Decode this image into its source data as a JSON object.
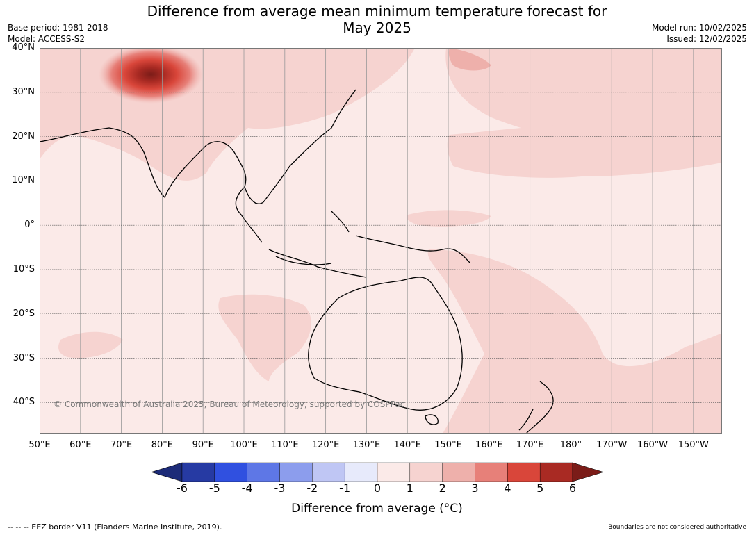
{
  "title_line1": "Difference from average mean minimum temperature forecast for",
  "title_line2": "May 2025",
  "meta_left": [
    "Base period: 1981-2018",
    "Model: ACCESS-S2"
  ],
  "meta_right": [
    "Model run: 10/02/2025",
    "Issued: 12/02/2025"
  ],
  "map": {
    "lon_range": [
      50,
      217
    ],
    "lat_range": [
      -47,
      40
    ],
    "lat_ticks": [
      {
        "value": 40,
        "label": "40°N"
      },
      {
        "value": 30,
        "label": "30°N"
      },
      {
        "value": 20,
        "label": "20°N"
      },
      {
        "value": 10,
        "label": "10°N"
      },
      {
        "value": 0,
        "label": "0°"
      },
      {
        "value": -10,
        "label": "10°S"
      },
      {
        "value": -20,
        "label": "20°S"
      },
      {
        "value": -30,
        "label": "30°S"
      },
      {
        "value": -40,
        "label": "40°S"
      }
    ],
    "lon_ticks": [
      {
        "value": 50,
        "label": "50°E"
      },
      {
        "value": 60,
        "label": "60°E"
      },
      {
        "value": 70,
        "label": "70°E"
      },
      {
        "value": 80,
        "label": "80°E"
      },
      {
        "value": 90,
        "label": "90°E"
      },
      {
        "value": 100,
        "label": "100°E"
      },
      {
        "value": 110,
        "label": "110°E"
      },
      {
        "value": 120,
        "label": "120°E"
      },
      {
        "value": 130,
        "label": "130°E"
      },
      {
        "value": 140,
        "label": "140°E"
      },
      {
        "value": 150,
        "label": "150°E"
      },
      {
        "value": 160,
        "label": "160°E"
      },
      {
        "value": 170,
        "label": "170°E"
      },
      {
        "value": 180,
        "label": "180°"
      },
      {
        "value": 190,
        "label": "170°W"
      },
      {
        "value": 200,
        "label": "160°W"
      },
      {
        "value": 210,
        "label": "150°W"
      }
    ],
    "copyright": "© Commonwealth of Australia 2025, Bureau of Meteorology, supported by COSPPac",
    "background_color": "#fbeae8",
    "gridline_color": "#999999"
  },
  "colorbar": {
    "ticks": [
      "-6",
      "-5",
      "-4",
      "-3",
      "-2",
      "-1",
      "0",
      "1",
      "2",
      "3",
      "4",
      "5",
      "6"
    ],
    "colors": [
      "#263aa3",
      "#3050e0",
      "#5e77e6",
      "#8c9ded",
      "#bfc6f4",
      "#e7eafb",
      "#fbeae8",
      "#f6d3d0",
      "#eeb0ab",
      "#e78079",
      "#d9463a",
      "#a92a23"
    ],
    "under_color": "#1c2b78",
    "over_color": "#7b1c18",
    "label": "Difference from average (°C)"
  },
  "footer_left": "--  --  -- EEZ border V11 (Flanders Marine Institute, 2019).",
  "footer_right": "Boundaries are not considered authoritative"
}
